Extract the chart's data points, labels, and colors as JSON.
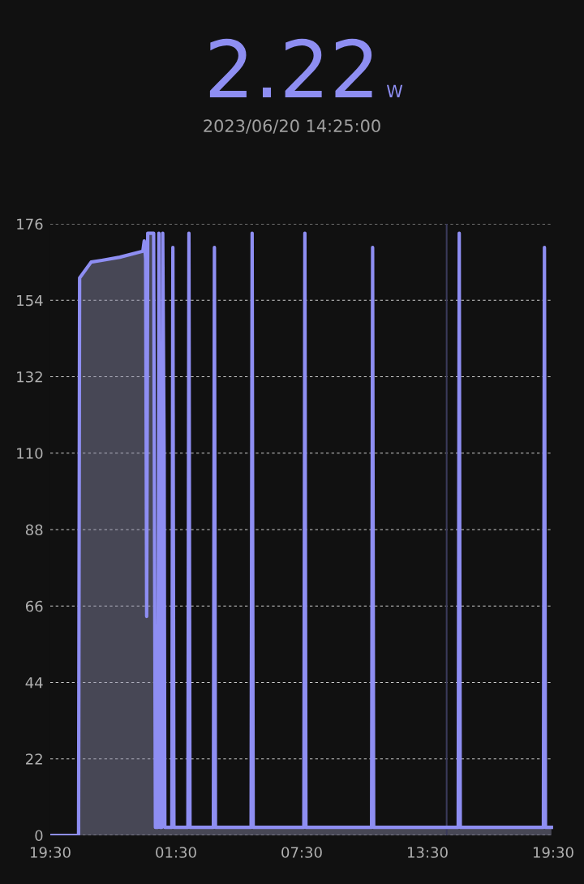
{
  "chart_data": {
    "type": "area",
    "title": "2.22 W",
    "subtitle": "2023/06/20 14:25:00",
    "x": [
      "2023-06-19T19:30",
      "2023-06-19T20:51",
      "2023-06-19T20:54",
      "2023-06-19T21:27",
      "2023-06-19T21:58",
      "2023-06-19T22:49",
      "2023-06-19T23:55",
      "2023-06-19T23:59",
      "2023-06-20T00:03",
      "2023-06-20T00:06",
      "2023-06-20T00:09",
      "2023-06-20T00:26",
      "2023-06-20T00:31",
      "2023-06-20T00:38",
      "2023-06-20T00:41",
      "2023-06-20T00:45",
      "2023-06-20T00:49",
      "2023-06-20T00:52",
      "2023-06-20T00:56",
      "2023-06-20T00:58",
      "2023-06-20T01:18",
      "2023-06-20T01:21",
      "2023-06-20T01:24",
      "2023-06-20T02:04",
      "2023-06-20T02:07",
      "2023-06-20T02:10",
      "2023-06-20T03:17",
      "2023-06-20T03:20",
      "2023-06-20T03:23",
      "2023-06-20T05:05",
      "2023-06-20T05:08",
      "2023-06-20T05:11",
      "2023-06-20T07:36",
      "2023-06-20T07:39",
      "2023-06-20T07:42",
      "2023-06-20T10:50",
      "2023-06-20T10:53",
      "2023-06-20T10:56",
      "2023-06-20T14:58",
      "2023-06-20T15:01",
      "2023-06-20T15:04",
      "2023-06-20T19:02",
      "2023-06-20T19:05",
      "2023-06-20T19:08",
      "2023-06-20T19:25"
    ],
    "series": [
      {
        "color": "#8e8ef2",
        "values": [
          0,
          0,
          160.4,
          165,
          165.5,
          166.4,
          168.1,
          171.1,
          166,
          63,
          173.3,
          173.3,
          2.3,
          2.3,
          173.3,
          2.3,
          2.3,
          173.3,
          108.5,
          2.3,
          2.3,
          169.2,
          2.3,
          2.3,
          173.3,
          2.3,
          2.3,
          169.2,
          2.3,
          2.3,
          173.3,
          2.3,
          2.3,
          173.3,
          2.3,
          2.3,
          169.2,
          2.3,
          2.3,
          173.3,
          2.3,
          2.3,
          169.2,
          2.3,
          2.3
        ]
      }
    ],
    "xlim": [
      "2023-06-19T19:30",
      "2023-06-20T19:30"
    ],
    "xticks": [
      {
        "value": "2023-06-19T19:30",
        "label": "19:30"
      },
      {
        "value": "2023-06-20T01:30",
        "label": "01:30"
      },
      {
        "value": "2023-06-20T07:30",
        "label": "07:30"
      },
      {
        "value": "2023-06-20T13:30",
        "label": "13:30"
      },
      {
        "value": "2023-06-20T19:30",
        "label": "19:30"
      }
    ],
    "ylim": [
      0,
      176
    ],
    "yticks": [
      0,
      22,
      44,
      66,
      88,
      110,
      132,
      154,
      176
    ],
    "grid": "y",
    "marker": "none",
    "line_style": "solid",
    "ref_lines": [
      {
        "axis": "x",
        "value": "2023-06-20T14:25",
        "color": "#3a3a5a",
        "line_style": "solid"
      }
    ]
  }
}
